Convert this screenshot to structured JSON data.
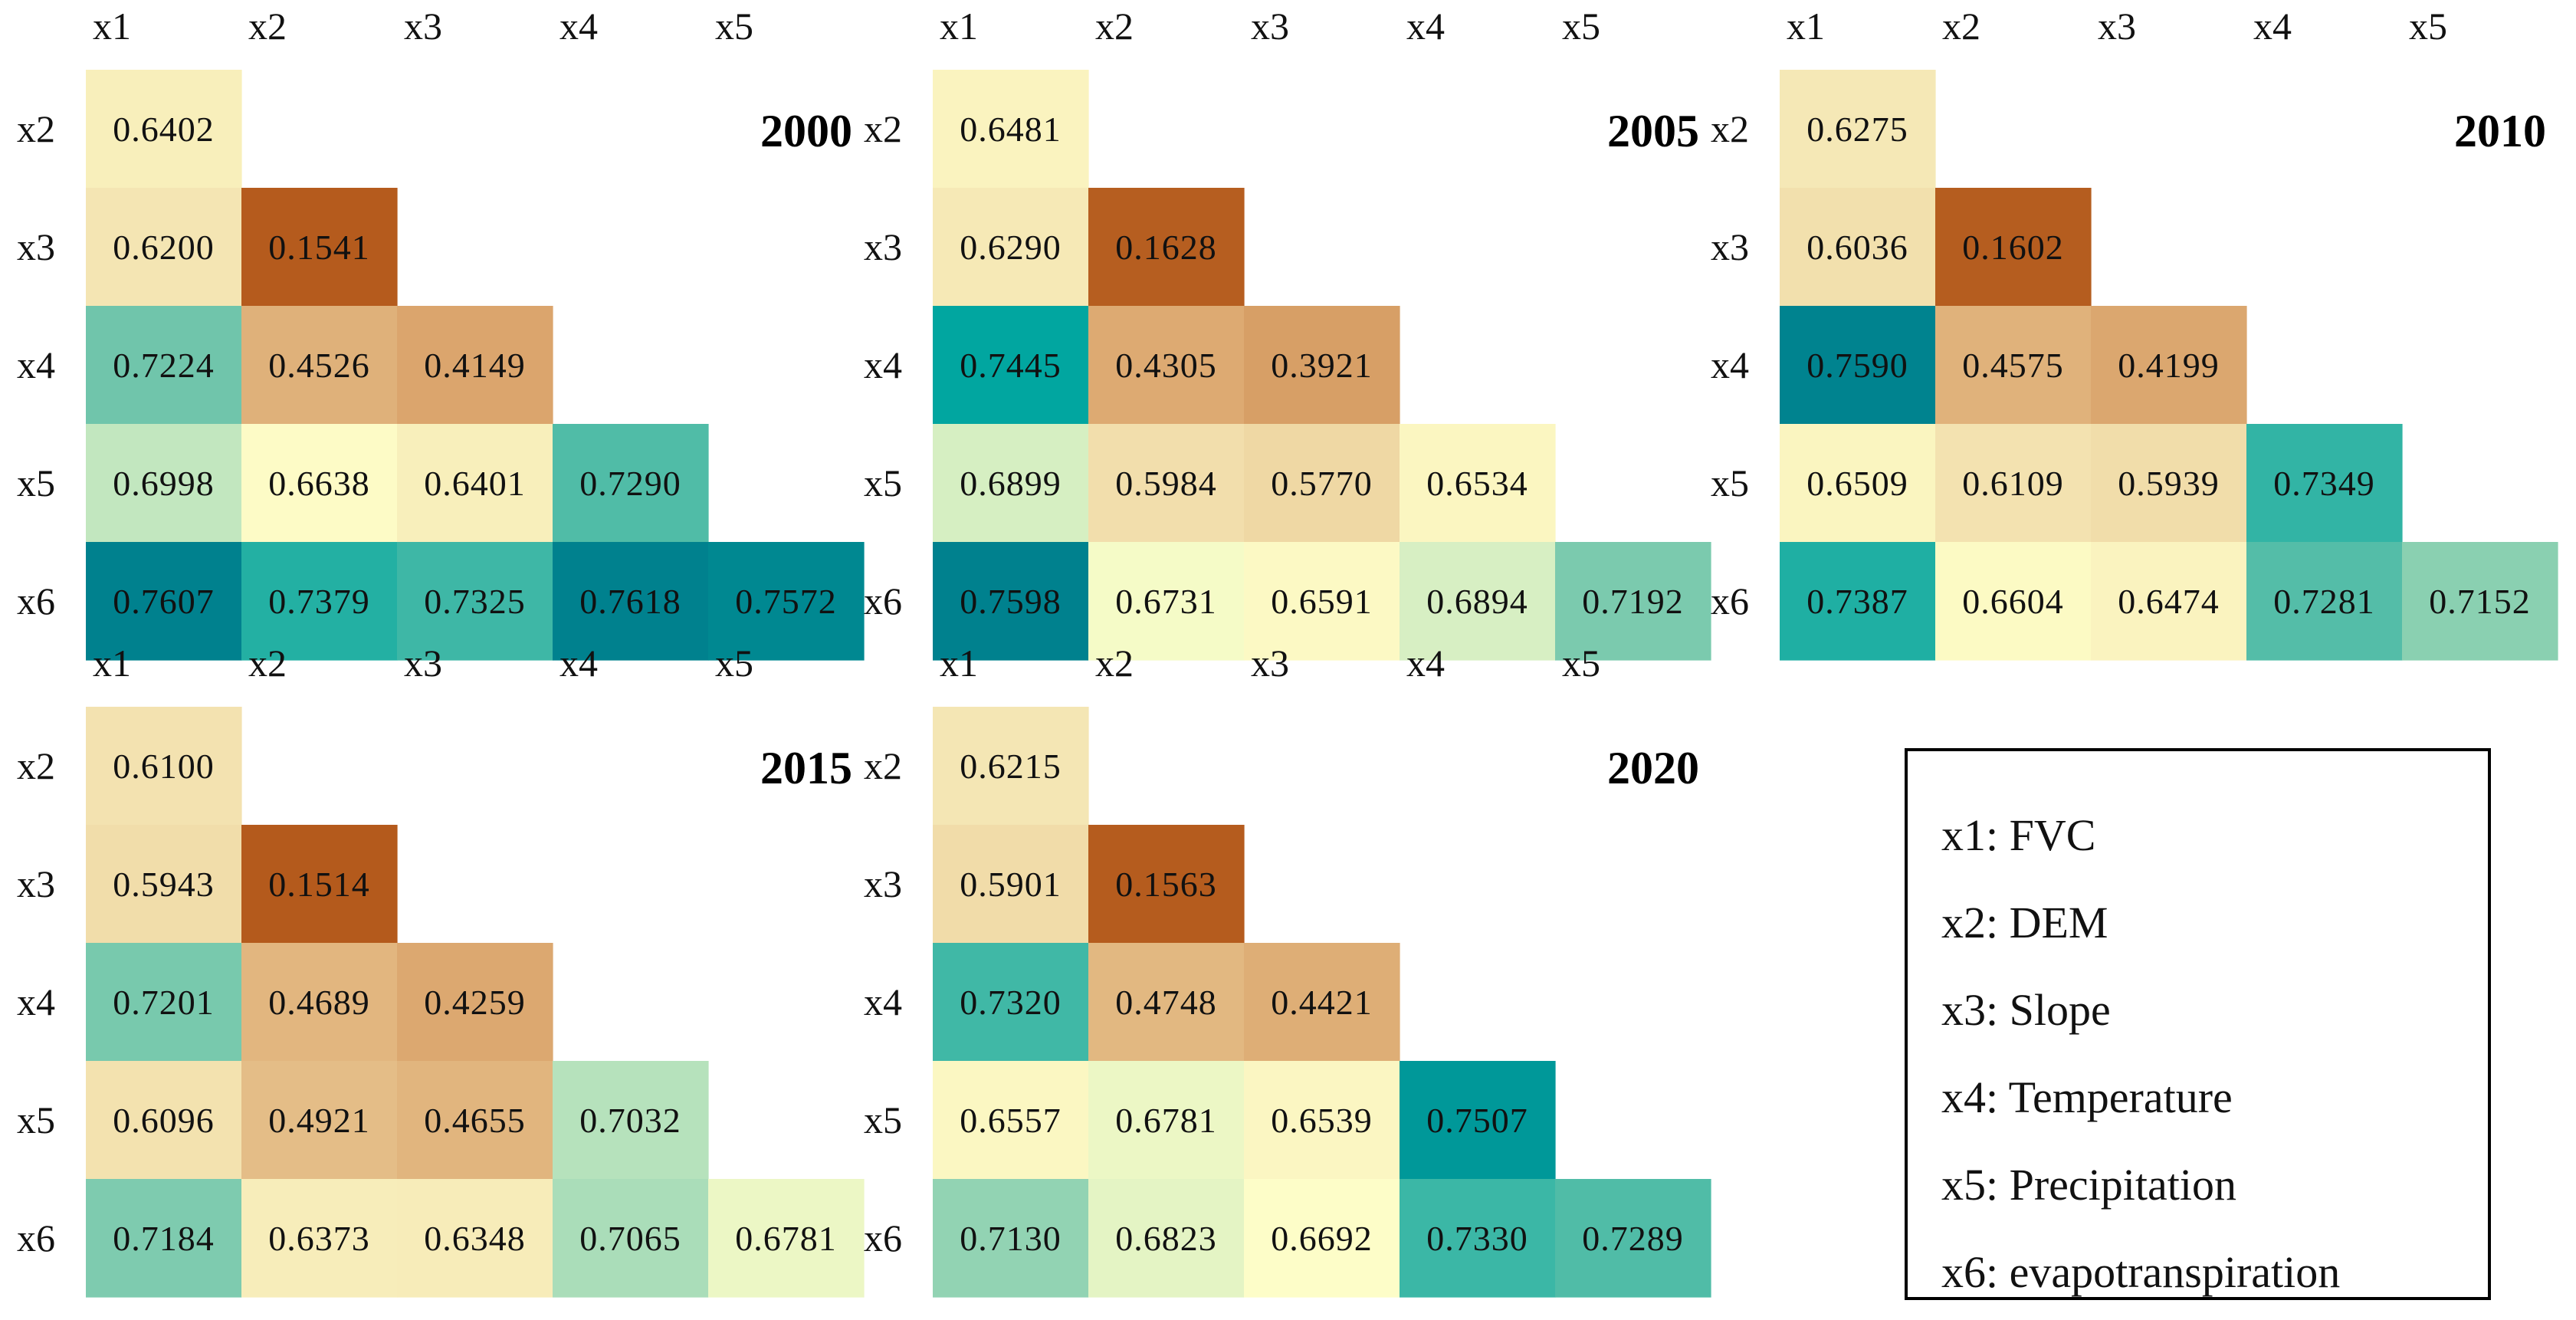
{
  "chart_data": {
    "type": "heatmap",
    "col_labels": [
      "x1",
      "x2",
      "x3",
      "x4",
      "x5"
    ],
    "row_labels": [
      "x2",
      "x3",
      "x4",
      "x5",
      "x6"
    ],
    "value_range": [
      0.15,
      0.76
    ],
    "colorscale": [
      "#b45a1c",
      "#dca870",
      "#f5e7b5",
      "#fefec8",
      "#c5e8c0",
      "#6cc4aa",
      "#00a6a0",
      "#00818e"
    ],
    "panels": [
      {
        "title": "2000",
        "values": [
          [
            0.6402
          ],
          [
            0.62,
            0.1541
          ],
          [
            0.7224,
            0.4526,
            0.4149
          ],
          [
            0.6998,
            0.6638,
            0.6401,
            0.729
          ],
          [
            0.7607,
            0.7379,
            0.7325,
            0.7618,
            0.7572
          ]
        ]
      },
      {
        "title": "2005",
        "values": [
          [
            0.6481
          ],
          [
            0.629,
            0.1628
          ],
          [
            0.7445,
            0.4305,
            0.3921
          ],
          [
            0.6899,
            0.5984,
            0.577,
            0.6534
          ],
          [
            0.7598,
            0.6731,
            0.6591,
            0.6894,
            0.7192
          ]
        ]
      },
      {
        "title": "2010",
        "values": [
          [
            0.6275
          ],
          [
            0.6036,
            0.1602
          ],
          [
            0.759,
            0.4575,
            0.4199
          ],
          [
            0.6509,
            0.6109,
            0.5939,
            0.7349
          ],
          [
            0.7387,
            0.6604,
            0.6474,
            0.7281,
            0.7152
          ]
        ]
      },
      {
        "title": "2015",
        "values": [
          [
            0.61
          ],
          [
            0.5943,
            0.1514
          ],
          [
            0.7201,
            0.4689,
            0.4259
          ],
          [
            0.6096,
            0.4921,
            0.4655,
            0.7032
          ],
          [
            0.7184,
            0.6373,
            0.6348,
            0.7065,
            0.6781
          ]
        ]
      },
      {
        "title": "2020",
        "values": [
          [
            0.6215
          ],
          [
            0.5901,
            0.1563
          ],
          [
            0.732,
            0.4748,
            0.4421
          ],
          [
            0.6557,
            0.6781,
            0.6539,
            0.7507
          ],
          [
            0.713,
            0.6823,
            0.6692,
            0.733,
            0.7289
          ]
        ]
      }
    ]
  },
  "legend": {
    "entries": [
      "x1: FVC",
      "x2: DEM",
      "x3: Slope",
      "x4: Temperature",
      "x5: Precipitation",
      "x6: evapotranspiration"
    ]
  }
}
